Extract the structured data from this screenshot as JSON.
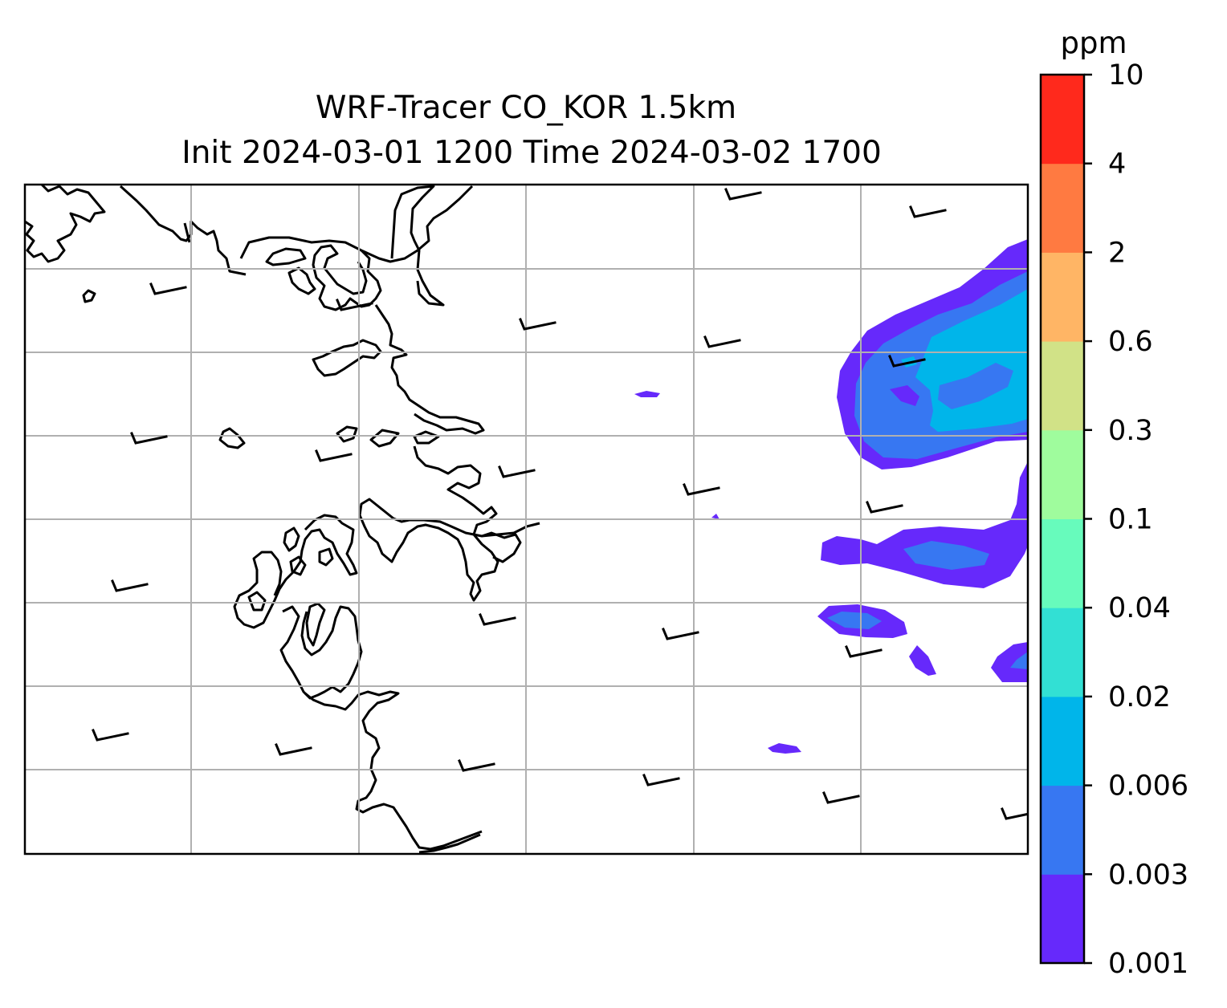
{
  "title": {
    "line1": "WRF-Tracer CO_KOR 1.5km",
    "line2": "Init 2024-03-01 1200 Time 2024-03-02 1700"
  },
  "colorbar": {
    "unit": "ppm",
    "levels": [
      "0.001",
      "0.003",
      "0.006",
      "0.02",
      "0.04",
      "0.1",
      "0.3",
      "0.6",
      "2",
      "4",
      "10"
    ],
    "colors": [
      "#6629fb",
      "#3777f2",
      "#00b5ea",
      "#32e0d4",
      "#67fbbc",
      "#9ffc9d",
      "#d1e287",
      "#ffb565",
      "#ff7a41",
      "#ff291c"
    ]
  },
  "map": {
    "gridlines": true,
    "coastline_color": "#000000",
    "grid_color": "#b0b0b0",
    "wind_barbs": "light westerly winds"
  }
}
